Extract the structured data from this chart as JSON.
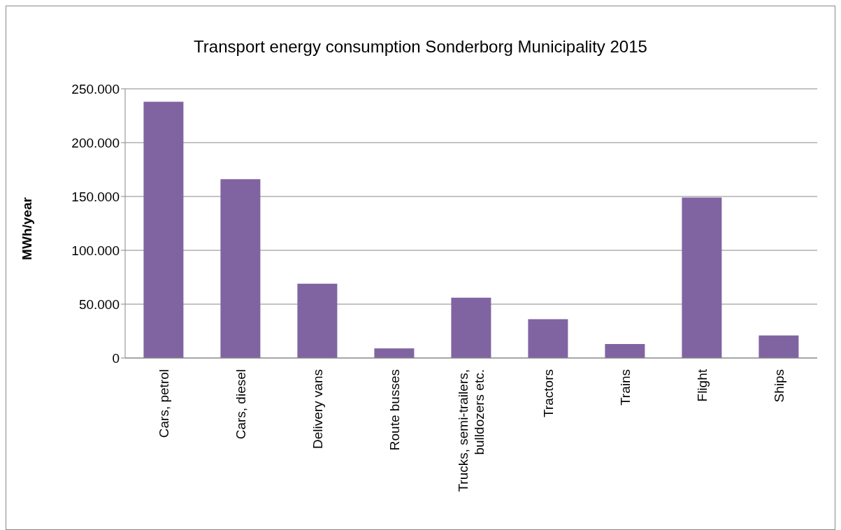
{
  "chart_data": {
    "type": "bar",
    "title": "Transport energy consumption Sonderborg Municipality 2015",
    "ylabel": "MWh/year",
    "categories": [
      "Cars, petrol",
      "Cars, diesel",
      "Delivery vans",
      "Route busses",
      "Trucks, semi-trailers, bulldozers etc.",
      "Tractors",
      "Trains",
      "Flight",
      "Ships"
    ],
    "values": [
      238000,
      166000,
      69000,
      9000,
      56000,
      36000,
      13000,
      149000,
      21000
    ],
    "color": "#8064a2",
    "ylim": [
      0,
      250000
    ],
    "yticks": [
      0,
      {
        "value": 50000,
        "label": "50.000"
      },
      {
        "value": 100000,
        "label": "100.000"
      },
      {
        "value": 150000,
        "label": "150.000"
      },
      {
        "value": 200000,
        "label": "200.000"
      },
      {
        "value": 250000,
        "label": "250.000"
      }
    ],
    "grid": "y"
  }
}
